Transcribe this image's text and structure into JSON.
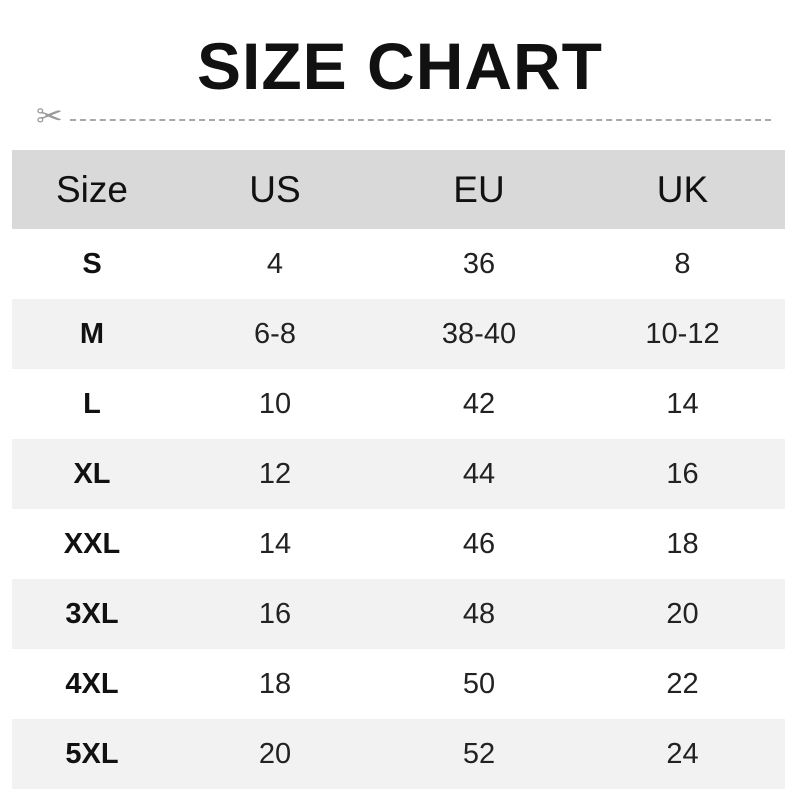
{
  "title": "SIZE CHART",
  "icons": {
    "cut": "scissors-icon"
  },
  "colors": {
    "header_bg": "#d9d9d9",
    "alt_row_bg": "#f2f2f2",
    "dash": "#a8a8a8"
  },
  "headers": [
    "Size",
    "US",
    "EU",
    "UK"
  ],
  "rows": [
    [
      "S",
      "4",
      "36",
      "8"
    ],
    [
      "M",
      "6-8",
      "38-40",
      "10-12"
    ],
    [
      "L",
      "10",
      "42",
      "14"
    ],
    [
      "XL",
      "12",
      "44",
      "16"
    ],
    [
      "XXL",
      "14",
      "46",
      "18"
    ],
    [
      "3XL",
      "16",
      "48",
      "20"
    ],
    [
      "4XL",
      "18",
      "50",
      "22"
    ],
    [
      "5XL",
      "20",
      "52",
      "24"
    ]
  ]
}
